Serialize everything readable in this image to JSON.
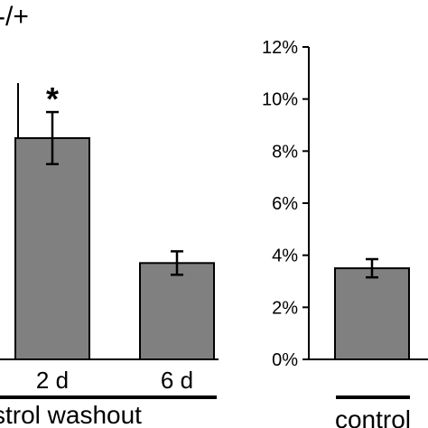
{
  "title": "-/+",
  "colors": {
    "bar": "#808080",
    "axis": "#000000",
    "text": "#000000",
    "background": "#ffffff"
  },
  "chart_data": [
    {
      "type": "bar",
      "panel": "left",
      "categories": [
        "",
        "2 d",
        "6 d"
      ],
      "values": [
        null,
        8.5,
        3.7
      ],
      "errors": [
        null,
        1.0,
        0.45
      ],
      "annotations": [
        {
          "category": "2 d",
          "text": "*"
        }
      ],
      "group_label": "strol washout",
      "ylim": [
        0,
        12
      ],
      "ytick_labels": []
    },
    {
      "type": "bar",
      "panel": "right",
      "categories": [
        ""
      ],
      "values": [
        3.5
      ],
      "errors": [
        0.35
      ],
      "group_label": "control",
      "ylim": [
        0,
        12
      ],
      "ytick_labels": [
        "0%",
        "2%",
        "4%",
        "6%",
        "8%",
        "10%",
        "12%"
      ]
    }
  ]
}
